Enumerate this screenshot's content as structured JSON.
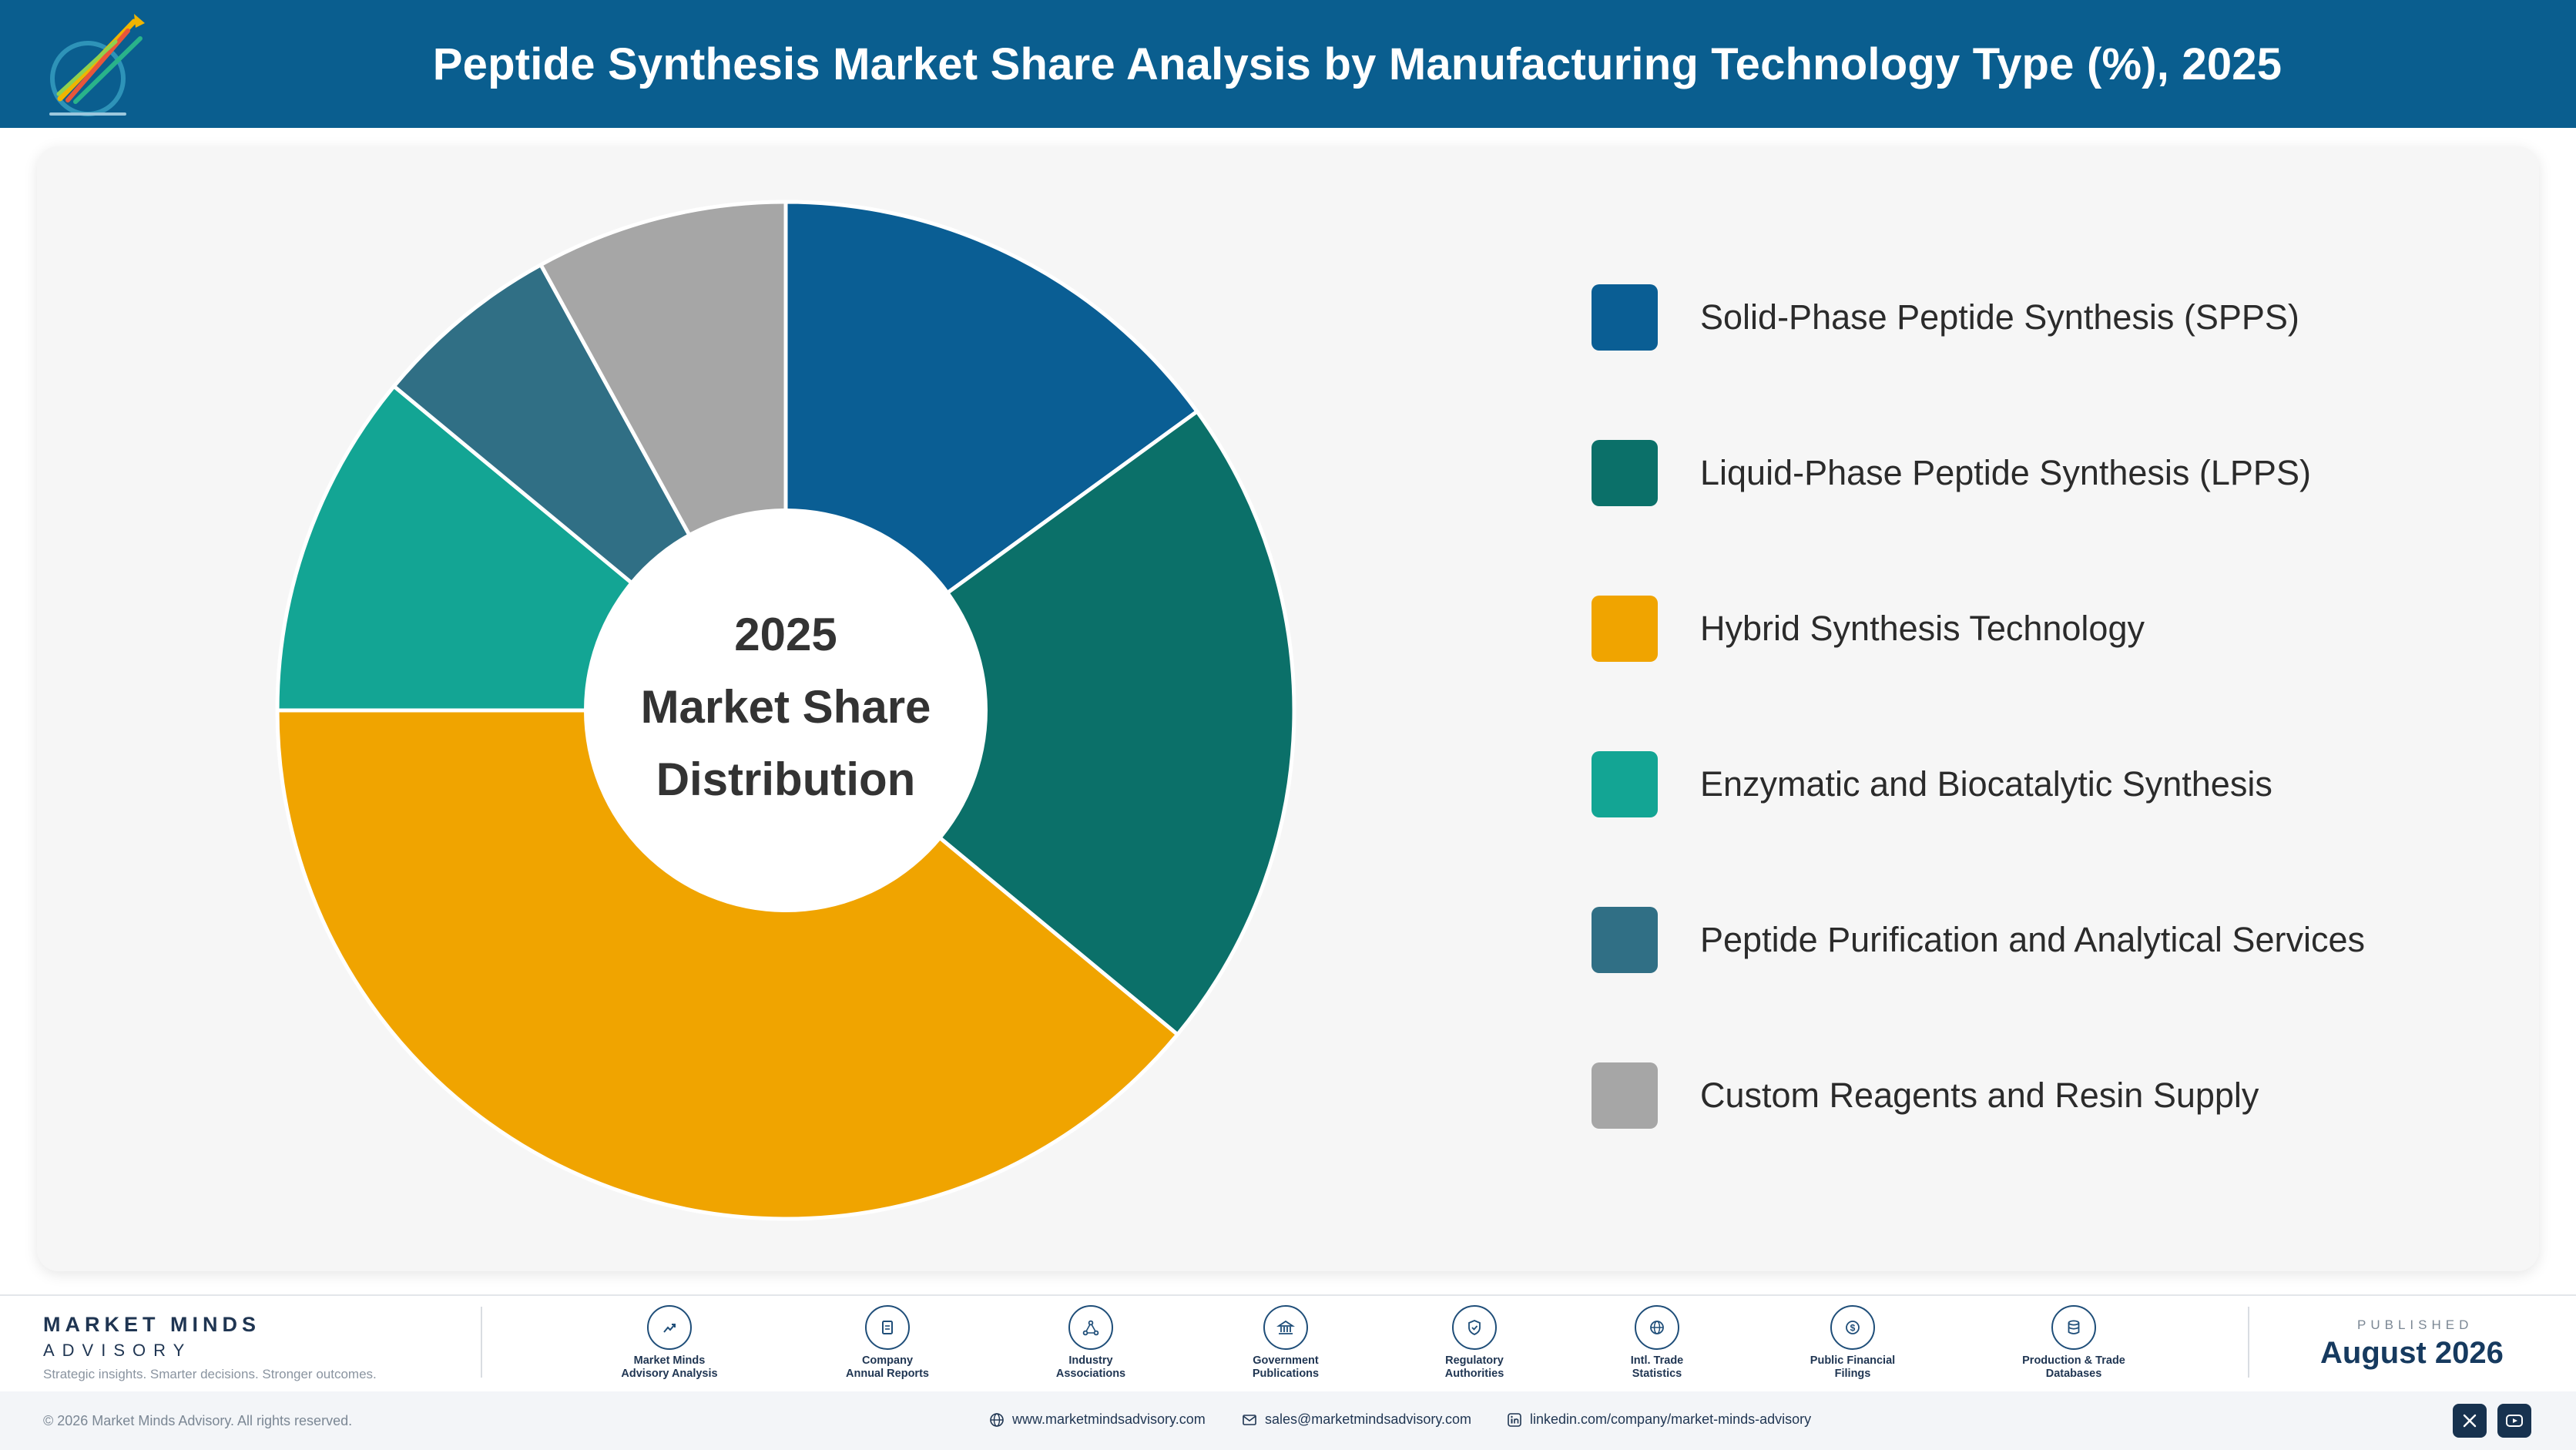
{
  "header": {
    "title": "Peptide Synthesis Market Share Analysis by Manufacturing Technology Type (%), 2025",
    "logo_icon": "market-minds-logo"
  },
  "chart_data": {
    "type": "pie",
    "donut": true,
    "center_text": [
      "2025",
      "Market Share",
      "Distribution"
    ],
    "series": [
      {
        "name": "Solid-Phase Peptide Synthesis (SPPS)",
        "value": 15,
        "color": "#0a5e94"
      },
      {
        "name": "Liquid-Phase Peptide Synthesis (LPPS)",
        "value": 21,
        "color": "#0b7069"
      },
      {
        "name": "Hybrid Synthesis Technology",
        "value": 39,
        "color": "#f0a400"
      },
      {
        "name": "Enzymatic and Biocatalytic Synthesis",
        "value": 11,
        "color": "#13a594"
      },
      {
        "name": "Peptide Purification and Analytical Services",
        "value": 6,
        "color": "#306f85"
      },
      {
        "name": "Custom Reagents and Resin Supply",
        "value": 8,
        "color": "#a6a6a6"
      }
    ],
    "legend_position": "right"
  },
  "footer": {
    "brand_name": "MARKET MINDS",
    "brand_sub": "ADVISORY",
    "tagline": "Strategic insights. Smarter decisions. Stronger outcomes.",
    "sources": [
      {
        "label": "Market Minds\nAdvisory Analysis",
        "icon": "trend-icon"
      },
      {
        "label": "Company\nAnnual Reports",
        "icon": "document-icon"
      },
      {
        "label": "Industry\nAssociations",
        "icon": "network-icon"
      },
      {
        "label": "Government\nPublications",
        "icon": "government-icon"
      },
      {
        "label": "Regulatory\nAuthorities",
        "icon": "shield-icon"
      },
      {
        "label": "Intl. Trade\nStatistics",
        "icon": "globe-icon"
      },
      {
        "label": "Public Financial\nFilings",
        "icon": "dollar-icon"
      },
      {
        "label": "Production & Trade\nDatabases",
        "icon": "database-icon"
      }
    ],
    "published_label": "PUBLISHED",
    "published_date": "August 2026",
    "copyright": "© 2026 Market Minds Advisory. All rights reserved.",
    "website": "www.marketmindsadvisory.com",
    "email": "sales@marketmindsadvisory.com",
    "linkedin": "linkedin.com/company/market-minds-advisory"
  }
}
